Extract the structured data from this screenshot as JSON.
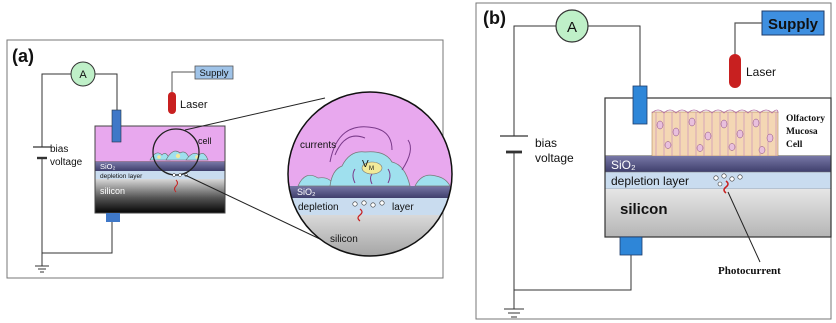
{
  "panel_a": {
    "tag": "(a)",
    "ammeter": "A",
    "supply": "Supply",
    "laser": "Laser",
    "bias_line1": "bias",
    "bias_line2": "voltage",
    "cell": "cell",
    "sio2": "SiO₂",
    "depletion_layer": "depletion layer",
    "silicon": "silicon",
    "zoom_currents": "currents",
    "zoom_vm": "V",
    "zoom_vm_sub": "M",
    "zoom_sio2": "SiO₂",
    "zoom_depletion": "depletion",
    "zoom_layer": "layer",
    "zoom_silicon": "silicon"
  },
  "panel_b": {
    "tag": "(b)",
    "ammeter": "A",
    "supply": "Supply",
    "laser": "Laser",
    "bias_line1": "bias",
    "bias_line2": "voltage",
    "cell_line1": "Olfactory",
    "cell_line2": "Mucosa",
    "cell_line3": "Cell",
    "sio2": "SiO₂",
    "depletion_layer": "depletion layer",
    "silicon": "silicon",
    "photocurrent": "Photocurrent"
  },
  "colors": {
    "cell_medium": "#e8a8ee",
    "sio2": "#5a5a8a",
    "depletion": "#c9dcef",
    "supply_box": "#9fc3e8",
    "electrode": "#3f78c8",
    "ammeter_fill": "#bff0c8",
    "laser": "#c82020"
  }
}
